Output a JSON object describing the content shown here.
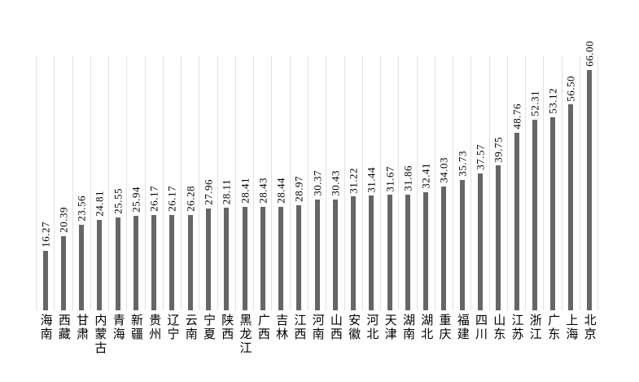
{
  "chart_data": {
    "type": "bar",
    "title": "",
    "xlabel": "",
    "ylabel": "",
    "categories": [
      "海南",
      "西藏",
      "甘肃",
      "内蒙古",
      "青海",
      "新疆",
      "贵州",
      "辽宁",
      "云南",
      "宁夏",
      "陕西",
      "黑龙江",
      "广西",
      "吉林",
      "江西",
      "河南",
      "山西",
      "安徽",
      "河北",
      "天津",
      "湖南",
      "湖北",
      "重庆",
      "福建",
      "四川",
      "山东",
      "江苏",
      "浙江",
      "广东",
      "上海",
      "北京"
    ],
    "values": [
      16.27,
      20.39,
      23.56,
      24.81,
      25.55,
      25.94,
      26.17,
      26.17,
      26.28,
      27.96,
      28.11,
      28.41,
      28.43,
      28.44,
      28.97,
      30.37,
      30.43,
      31.22,
      31.44,
      31.67,
      31.86,
      32.41,
      34.03,
      35.73,
      37.57,
      39.75,
      48.76,
      52.31,
      53.12,
      56.5,
      66.0
    ],
    "value_labels": [
      "16.27",
      "20.39",
      "23.56",
      "24.81",
      "25.55",
      "25.94",
      "26.17",
      "26.17",
      "26.28",
      "27.96",
      "28.11",
      "28.41",
      "28.43",
      "28.44",
      "28.97",
      "30.37",
      "30.43",
      "31.22",
      "31.44",
      "31.67",
      "31.86",
      "32.41",
      "34.03",
      "35.73",
      "37.57",
      "39.75",
      "48.76",
      "52.31",
      "53.12",
      "56.50",
      "66.00"
    ],
    "ylim": [
      0,
      70
    ],
    "grid": "vertical-category-gridlines",
    "legend": "none",
    "y_axis_labels": "none",
    "bar_color": "#666666",
    "gridline_color": "#e2e2e2",
    "value_label_rotation_deg": 90,
    "x_label_orientation": "vertical-upright"
  }
}
